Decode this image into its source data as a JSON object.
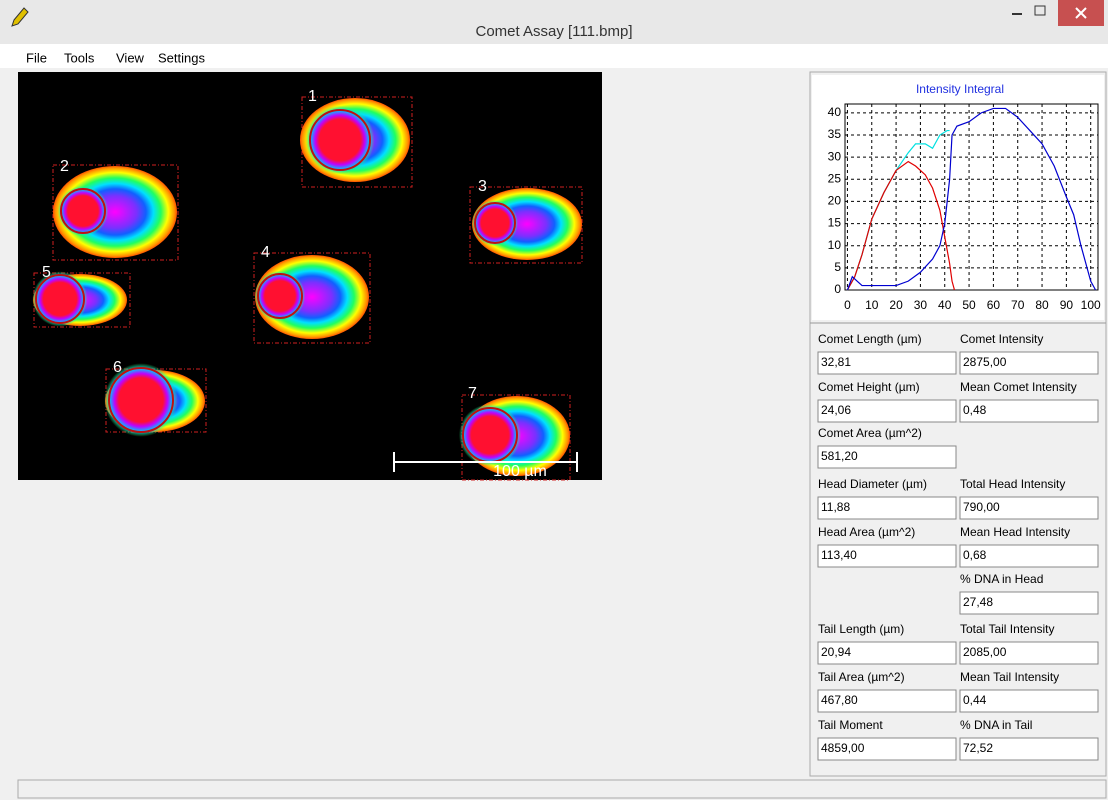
{
  "window": {
    "title": "Comet Assay [111.bmp]",
    "menu": [
      "File",
      "Tools",
      "View",
      "Settings"
    ]
  },
  "image": {
    "comet_labels": [
      "1",
      "2",
      "3",
      "4",
      "5",
      "6",
      "7"
    ],
    "scale_bar": "100 µm"
  },
  "chart_data": {
    "type": "line",
    "title": "Intensity Integral",
    "xlim": [
      -1,
      103
    ],
    "ylim": [
      0,
      42
    ],
    "xticks": [
      0,
      10,
      20,
      30,
      40,
      50,
      60,
      70,
      80,
      90,
      100
    ],
    "yticks": [
      0,
      5,
      10,
      15,
      20,
      25,
      30,
      35,
      40
    ],
    "grid": true,
    "series": [
      {
        "color": "#00e0e0",
        "x": [
          0,
          3,
          6,
          10,
          15,
          20,
          25,
          28,
          32,
          35,
          38,
          41,
          42
        ],
        "values": [
          0,
          3,
          8,
          16,
          22,
          27,
          31,
          33,
          33,
          32,
          35,
          36,
          36
        ]
      },
      {
        "color": "#e00000",
        "x": [
          0,
          3,
          6,
          10,
          15,
          20,
          25,
          28,
          32,
          35,
          38,
          40,
          42,
          43,
          44
        ],
        "values": [
          0,
          3,
          8,
          16,
          22,
          27,
          29,
          28,
          26,
          23,
          18,
          12,
          6,
          2,
          0
        ]
      },
      {
        "color": "#0000d0",
        "x": [
          0,
          2,
          4,
          6,
          10,
          15,
          20,
          25,
          30,
          35,
          38,
          40,
          42,
          43,
          45,
          50,
          55,
          60,
          65,
          70,
          75,
          80,
          85,
          90,
          93,
          96,
          100,
          102
        ],
        "values": [
          0,
          3,
          2,
          1,
          1,
          1,
          1,
          2,
          4,
          7,
          10,
          15,
          25,
          35,
          37,
          38,
          40,
          41,
          41,
          39,
          36,
          33,
          28,
          21,
          17,
          10,
          2,
          0
        ]
      }
    ]
  },
  "fields": [
    {
      "left": {
        "label": "Comet Length (µm)",
        "value": "32,81"
      },
      "right": {
        "label": "Comet Intensity",
        "value": "2875,00"
      }
    },
    {
      "left": {
        "label": "Comet Height (µm)",
        "value": "24,06"
      },
      "right": {
        "label": "Mean Comet Intensity",
        "value": "0,48"
      }
    },
    {
      "left": {
        "label": "Comet Area (µm^2)",
        "value": "581,20"
      }
    },
    {
      "left": {
        "label": "Head Diameter (µm)",
        "value": "11,88"
      },
      "right": {
        "label": "Total Head Intensity",
        "value": "790,00"
      }
    },
    {
      "left": {
        "label": "Head Area (µm^2)",
        "value": "113,40"
      },
      "right": {
        "label": "Mean Head Intensity",
        "value": "0,68"
      }
    },
    {
      "right": {
        "label": "% DNA in Head",
        "value": "27,48"
      }
    },
    {
      "left": {
        "label": "Tail Length (µm)",
        "value": "20,94"
      },
      "right": {
        "label": "Total Tail Intensity",
        "value": "2085,00"
      }
    },
    {
      "left": {
        "label": "Tail Area (µm^2)",
        "value": "467,80"
      },
      "right": {
        "label": "Mean Tail Intensity",
        "value": "0,44"
      }
    },
    {
      "left": {
        "label": "Tail Moment",
        "value": "4859,00"
      },
      "right": {
        "label": "% DNA in Tail",
        "value": "72,52"
      }
    }
  ]
}
